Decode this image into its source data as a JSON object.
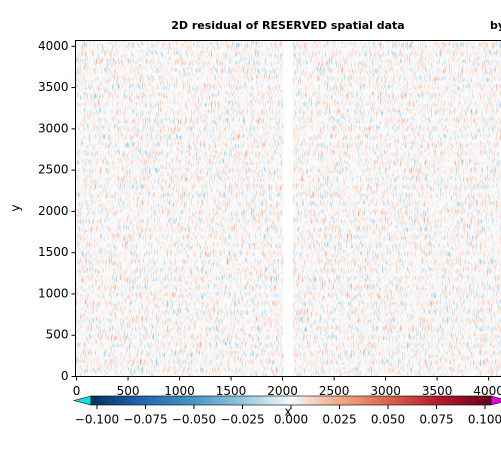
{
  "chart_data": {
    "type": "heatmap",
    "title": "2D residual of RESERVED spatial data",
    "second_title": "by",
    "x_label": "x",
    "y_label": "y",
    "xlim": [
      -10,
      4120
    ],
    "ylim": [
      0,
      4070
    ],
    "xticks": [
      0,
      500,
      1000,
      1500,
      2000,
      2500,
      3000,
      3500,
      4000
    ],
    "yticks": [
      0,
      500,
      1000,
      1500,
      2000,
      2500,
      3000,
      3500,
      4000
    ],
    "colormap": [
      "#053061",
      "#2166ac",
      "#4393c3",
      "#92c5de",
      "#f7f7f7",
      "#f4a582",
      "#d6604d",
      "#b2182b",
      "#67001f"
    ],
    "colorbar_lim": [
      -0.1,
      0.1
    ],
    "colorbar_ticks": [
      {
        "value": -0.1,
        "label": "−0.100"
      },
      {
        "value": -0.075,
        "label": "−0.075"
      },
      {
        "value": -0.05,
        "label": "−0.050"
      },
      {
        "value": -0.025,
        "label": "−0.025"
      },
      {
        "value": 0,
        "label": "0.000"
      },
      {
        "value": 0.025,
        "label": "0.025"
      },
      {
        "value": 0.05,
        "label": "0.050"
      },
      {
        "value": 0.075,
        "label": "0.075"
      },
      {
        "value": 0.1,
        "label": "0.100"
      }
    ],
    "extend_colors": [
      "#00e5e5",
      "#e500e5"
    ]
  }
}
